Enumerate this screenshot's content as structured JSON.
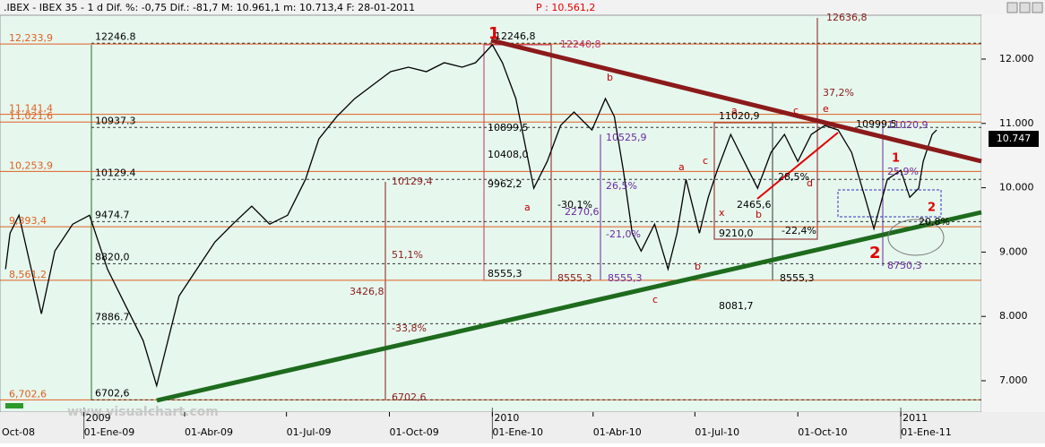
{
  "header": {
    "title": ".IBEX - IBEX 35 -  1 d Dif. %: -0,75 Dif.: -81,7 M: 10.961,1 m: 10.713,4 F: 28-01-2011",
    "last": "P : 10.561,2"
  },
  "chart_data": {
    "type": "line",
    "color": "#000000",
    "x": [
      "2008-10-23",
      "2008-10-27",
      "2008-11-04",
      "2008-11-24",
      "2008-12-06",
      "2008-12-22",
      "2009-01-06",
      "2009-01-22",
      "2009-02-07",
      "2009-02-23",
      "2009-03-07",
      "2009-03-15",
      "2009-03-27",
      "2009-04-12",
      "2009-04-28",
      "2009-05-14",
      "2009-05-31",
      "2009-06-16",
      "2009-07-02",
      "2009-07-18",
      "2009-07-30",
      "2009-08-15",
      "2009-08-31",
      "2009-09-16",
      "2009-10-02",
      "2009-10-18",
      "2009-11-03",
      "2009-11-19",
      "2009-12-05",
      "2009-12-17",
      "2010-01-01",
      "2010-01-10",
      "2010-01-22",
      "2010-01-30",
      "2010-02-07",
      "2010-02-19",
      "2010-03-03",
      "2010-03-15",
      "2010-03-31",
      "2010-04-12",
      "2010-04-20",
      "2010-04-28",
      "2010-05-06",
      "2010-05-14",
      "2010-05-26",
      "2010-06-07",
      "2010-06-15",
      "2010-06-23",
      "2010-07-05",
      "2010-07-13",
      "2010-07-21",
      "2010-08-02",
      "2010-08-14",
      "2010-08-26",
      "2010-09-07",
      "2010-09-19",
      "2010-10-01",
      "2010-10-13",
      "2010-10-25",
      "2010-11-06",
      "2010-11-18",
      "2010-11-30",
      "2010-12-08",
      "2010-12-20",
      "2011-01-01",
      "2011-01-09",
      "2011-01-17",
      "2011-01-21",
      "2011-01-29",
      "2011-02-02"
    ],
    "values": [
      8736,
      9294,
      9573,
      8039,
      9015,
      9434,
      9573,
      8736,
      8179,
      7621,
      6923,
      7481,
      8318,
      8736,
      9155,
      9434,
      9713,
      9434,
      9573,
      10131,
      10759,
      11107,
      11386,
      11596,
      11805,
      11874,
      11805,
      11944,
      11874,
      11944,
      12223,
      11944,
      11386,
      10689,
      9992,
      10410,
      10968,
      11177,
      10898,
      11386,
      11107,
      10271,
      9294,
      9015,
      9434,
      8736,
      9294,
      10131,
      9294,
      9852,
      10271,
      10829,
      10410,
      9992,
      10550,
      10829,
      10410,
      10829,
      10968,
      10898,
      10550,
      9852,
      9364,
      10131,
      10271,
      9852,
      9992,
      10410,
      10829,
      10898
    ],
    "xlim": [
      "2008-10-18",
      "2011-03-14"
    ],
    "xticks": [
      {
        "value": "2008-10",
        "label": "Oct-08"
      },
      {
        "value": "2009-01-01",
        "label": "01-Ene-09"
      },
      {
        "value": "2009-04-01",
        "label": "01-Abr-09"
      },
      {
        "value": "2009-07-01",
        "label": "01-Jul-09"
      },
      {
        "value": "2009-10-01",
        "label": "01-Oct-09"
      },
      {
        "value": "2010-01-01",
        "label": "01-Ene-10"
      },
      {
        "value": "2010-04-01",
        "label": "01-Abr-10"
      },
      {
        "value": "2010-07-01",
        "label": "01-Jul-10"
      },
      {
        "value": "2010-10-01",
        "label": "01-Oct-10"
      },
      {
        "value": "2011-01-01",
        "label": "01-Ene-11"
      }
    ],
    "years": [
      {
        "value": "2009-01-01",
        "label": "2009"
      },
      {
        "value": "2010-01-01",
        "label": "2010"
      },
      {
        "value": "2011-01-01",
        "label": "2011"
      }
    ],
    "ylim": [
      6513,
      12682
    ],
    "yticks": [
      {
        "value": 7000,
        "label": "7.000"
      },
      {
        "value": 8000,
        "label": "8.000"
      },
      {
        "value": 9000,
        "label": "9.000"
      },
      {
        "value": 10000,
        "label": "10.000"
      },
      {
        "value": 11000,
        "label": "11.000"
      },
      {
        "value": 12000,
        "label": "12.000"
      }
    ],
    "levels": [
      {
        "value": 12233.9,
        "label": "12,233,9"
      },
      {
        "value": 11141.4,
        "label": "11,141,4"
      },
      {
        "value": 11021.6,
        "label": "11,021,6"
      },
      {
        "value": 10253.9,
        "label": "10,253,9"
      },
      {
        "value": 9393.4,
        "label": "9,393,4"
      },
      {
        "value": 8561.2,
        "label": "8,561,2"
      },
      {
        "value": 6702.6,
        "label": "6,702,6"
      }
    ],
    "fib_levels": [
      12246.8,
      10937.3,
      10129.4,
      9474.7,
      {
        "value": 8820.0,
        "label": "8820,0"
      },
      7886.7,
      {
        "value": 6702.6,
        "label": "6702,6"
      }
    ],
    "last_price": "10.747",
    "annotations": [
      "1",
      "2",
      "12240,8",
      "12636,8",
      "37,2%",
      "b",
      "a",
      "b",
      "c",
      "a",
      "c",
      "x",
      "a",
      "b",
      "c",
      "e",
      "d",
      "1",
      "2",
      "11020,9",
      "10899,5",
      "10408,0",
      "9962,2",
      "8555,3",
      "8555,3",
      "8555,3",
      "8555,3",
      "8081,7",
      "9210,0",
      "2465,6",
      "2270,6",
      "10525,9",
      "26,5%",
      "-21,0%",
      "-30,1%",
      "-22,4%",
      "25,9%",
      "20,8%",
      "28,5%",
      "10999,5",
      "11020,9",
      "8750,3",
      "10129,4",
      "51,1%",
      "3426,8",
      "-33,8%",
      "6702,6",
      "12246,8"
    ],
    "watermark": "www.visualchart.com"
  }
}
